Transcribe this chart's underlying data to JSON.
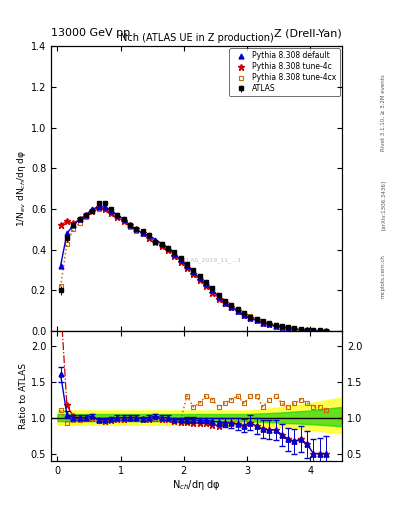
{
  "title_top_left": "13000 GeV pp",
  "title_top_right": "Z (Drell-Yan)",
  "plot_title": "Nch (ATLAS UE in Z production)",
  "xlabel": "N$_{ch}$/dη dφ",
  "ylabel_main": "1/N$_{ev}$ dN$_{ch}$/dη dφ",
  "ylabel_ratio": "Ratio to ATLAS",
  "rivet_text": "Rivet 3.1.10, ≥ 3.2M events",
  "arxiv_text": "[arXiv:1306.3436]",
  "mcplots_text": "mcplots.cern.ch",
  "xlim": [
    -0.1,
    4.5
  ],
  "ylim_main": [
    0,
    1.4
  ],
  "ylim_ratio": [
    0.4,
    2.2
  ],
  "atlas_x": [
    0.05,
    0.15,
    0.25,
    0.35,
    0.45,
    0.55,
    0.65,
    0.75,
    0.85,
    0.95,
    1.05,
    1.15,
    1.25,
    1.35,
    1.45,
    1.55,
    1.65,
    1.75,
    1.85,
    1.95,
    2.05,
    2.15,
    2.25,
    2.35,
    2.45,
    2.55,
    2.65,
    2.75,
    2.85,
    2.95,
    3.05,
    3.15,
    3.25,
    3.35,
    3.45,
    3.55,
    3.65,
    3.75,
    3.85,
    3.95,
    4.05,
    4.15,
    4.25
  ],
  "atlas_y": [
    0.2,
    0.46,
    0.52,
    0.55,
    0.57,
    0.59,
    0.63,
    0.63,
    0.6,
    0.57,
    0.55,
    0.52,
    0.5,
    0.49,
    0.47,
    0.44,
    0.43,
    0.41,
    0.39,
    0.36,
    0.33,
    0.3,
    0.27,
    0.24,
    0.21,
    0.18,
    0.15,
    0.13,
    0.11,
    0.09,
    0.07,
    0.06,
    0.05,
    0.04,
    0.03,
    0.025,
    0.02,
    0.015,
    0.01,
    0.008,
    0.006,
    0.004,
    0.002
  ],
  "atlas_yerr": [
    0.02,
    0.02,
    0.01,
    0.01,
    0.01,
    0.01,
    0.01,
    0.01,
    0.01,
    0.01,
    0.01,
    0.01,
    0.01,
    0.01,
    0.01,
    0.01,
    0.01,
    0.01,
    0.01,
    0.01,
    0.01,
    0.01,
    0.01,
    0.01,
    0.01,
    0.01,
    0.008,
    0.007,
    0.006,
    0.005,
    0.004,
    0.004,
    0.003,
    0.003,
    0.002,
    0.002,
    0.002,
    0.001,
    0.001,
    0.001,
    0.001,
    0.0005,
    0.0005
  ],
  "pythia_default_x": [
    0.05,
    0.15,
    0.25,
    0.35,
    0.45,
    0.55,
    0.65,
    0.75,
    0.85,
    0.95,
    1.05,
    1.15,
    1.25,
    1.35,
    1.45,
    1.55,
    1.65,
    1.75,
    1.85,
    1.95,
    2.05,
    2.15,
    2.25,
    2.35,
    2.45,
    2.55,
    2.65,
    2.75,
    2.85,
    2.95,
    3.05,
    3.15,
    3.25,
    3.35,
    3.45,
    3.55,
    3.65,
    3.75,
    3.85,
    3.95,
    4.05,
    4.15,
    4.25
  ],
  "pythia_default_y": [
    0.32,
    0.48,
    0.52,
    0.55,
    0.57,
    0.6,
    0.61,
    0.61,
    0.59,
    0.57,
    0.55,
    0.52,
    0.5,
    0.48,
    0.47,
    0.45,
    0.43,
    0.41,
    0.38,
    0.35,
    0.32,
    0.29,
    0.26,
    0.23,
    0.2,
    0.17,
    0.14,
    0.12,
    0.1,
    0.08,
    0.065,
    0.053,
    0.042,
    0.033,
    0.025,
    0.019,
    0.014,
    0.01,
    0.007,
    0.005,
    0.003,
    0.002,
    0.001
  ],
  "pythia_tune4c_x": [
    0.05,
    0.15,
    0.25,
    0.35,
    0.45,
    0.55,
    0.65,
    0.75,
    0.85,
    0.95,
    1.05,
    1.15,
    1.25,
    1.35,
    1.45,
    1.55,
    1.65,
    1.75,
    1.85,
    1.95,
    2.05,
    2.15,
    2.25,
    2.35,
    2.45,
    2.55,
    2.65,
    2.75,
    2.85,
    2.95,
    3.05,
    3.15,
    3.25,
    3.35,
    3.45,
    3.55,
    3.65,
    3.75,
    3.85,
    3.95,
    4.05,
    4.15,
    4.25
  ],
  "pythia_tune4c_y": [
    0.52,
    0.54,
    0.53,
    0.55,
    0.57,
    0.59,
    0.61,
    0.6,
    0.58,
    0.56,
    0.54,
    0.52,
    0.5,
    0.48,
    0.46,
    0.44,
    0.42,
    0.4,
    0.37,
    0.34,
    0.31,
    0.28,
    0.25,
    0.22,
    0.19,
    0.16,
    0.14,
    0.12,
    0.1,
    0.08,
    0.065,
    0.053,
    0.042,
    0.033,
    0.025,
    0.019,
    0.014,
    0.01,
    0.007,
    0.005,
    0.003,
    0.002,
    0.001
  ],
  "pythia_tune4cx_x": [
    0.05,
    0.15,
    0.25,
    0.35,
    0.45,
    0.55,
    0.65,
    0.75,
    0.85,
    0.95,
    1.05,
    1.15,
    1.25,
    1.35,
    1.45,
    1.55,
    1.65,
    1.75,
    1.85,
    1.95,
    2.05,
    2.15,
    2.25,
    2.35,
    2.45,
    2.55,
    2.65,
    2.75,
    2.85,
    2.95,
    3.05,
    3.15,
    3.25,
    3.35,
    3.45,
    3.55,
    3.65,
    3.75,
    3.85,
    3.95,
    4.05,
    4.15,
    4.25
  ],
  "pythia_tune4cx_y": [
    0.22,
    0.43,
    0.5,
    0.53,
    0.56,
    0.59,
    0.6,
    0.6,
    0.58,
    0.56,
    0.54,
    0.51,
    0.49,
    0.48,
    0.46,
    0.44,
    0.42,
    0.4,
    0.38,
    0.35,
    0.32,
    0.3,
    0.27,
    0.24,
    0.21,
    0.18,
    0.15,
    0.13,
    0.11,
    0.09,
    0.073,
    0.059,
    0.047,
    0.037,
    0.028,
    0.022,
    0.016,
    0.012,
    0.008,
    0.006,
    0.004,
    0.003,
    0.002
  ],
  "atlas_color": "#000000",
  "default_color": "#0000cc",
  "tune4c_color": "#cc0000",
  "tune4cx_color": "#cc6600",
  "ratio_default_x": [
    0.05,
    0.15,
    0.25,
    0.35,
    0.45,
    0.55,
    0.65,
    0.75,
    0.85,
    0.95,
    1.05,
    1.15,
    1.25,
    1.35,
    1.45,
    1.55,
    1.65,
    1.75,
    1.85,
    1.95,
    2.05,
    2.15,
    2.25,
    2.35,
    2.45,
    2.55,
    2.65,
    2.75,
    2.85,
    2.95,
    3.05,
    3.15,
    3.25,
    3.35,
    3.45,
    3.55,
    3.65,
    3.75,
    3.85,
    3.95,
    4.05,
    4.15,
    4.25
  ],
  "ratio_default_y": [
    1.6,
    1.04,
    1.0,
    1.0,
    1.0,
    1.02,
    0.97,
    0.97,
    0.98,
    1.0,
    1.0,
    1.0,
    1.0,
    0.98,
    1.0,
    1.02,
    1.0,
    1.0,
    0.97,
    0.97,
    0.97,
    0.97,
    0.96,
    0.96,
    0.95,
    0.94,
    0.93,
    0.92,
    0.91,
    0.89,
    0.93,
    0.88,
    0.84,
    0.83,
    0.83,
    0.76,
    0.7,
    0.67,
    0.7,
    0.63,
    0.5,
    0.5,
    0.5
  ],
  "ratio_default_err": [
    0.1,
    0.05,
    0.04,
    0.03,
    0.03,
    0.03,
    0.03,
    0.03,
    0.03,
    0.03,
    0.03,
    0.03,
    0.03,
    0.03,
    0.03,
    0.03,
    0.03,
    0.03,
    0.03,
    0.03,
    0.04,
    0.04,
    0.04,
    0.04,
    0.05,
    0.05,
    0.06,
    0.07,
    0.08,
    0.09,
    0.1,
    0.11,
    0.12,
    0.13,
    0.14,
    0.15,
    0.16,
    0.17,
    0.18,
    0.19,
    0.2,
    0.22,
    0.25
  ],
  "ratio_tune4c_x": [
    0.05,
    0.15,
    0.25,
    0.35,
    0.45,
    0.55,
    0.65,
    0.75,
    0.85,
    0.95,
    1.05,
    1.15,
    1.25,
    1.35,
    1.45,
    1.55,
    1.65,
    1.75,
    1.85,
    1.95,
    2.05,
    2.15,
    2.25,
    2.35,
    2.45,
    2.55,
    2.65,
    2.75,
    2.85,
    2.95,
    3.05,
    3.15,
    3.25,
    3.35,
    3.45,
    3.55,
    3.65,
    3.75,
    3.85,
    3.95,
    4.05,
    4.15,
    4.25
  ],
  "ratio_tune4c_y": [
    2.6,
    1.17,
    1.02,
    1.0,
    1.0,
    1.0,
    0.97,
    0.95,
    0.97,
    0.98,
    0.98,
    1.0,
    1.0,
    0.98,
    0.98,
    1.0,
    0.98,
    0.98,
    0.95,
    0.94,
    0.94,
    0.93,
    0.93,
    0.92,
    0.9,
    0.89,
    0.93,
    0.92,
    0.91,
    0.89,
    0.93,
    0.88,
    0.84,
    0.83,
    0.83,
    0.76,
    0.7,
    0.67,
    0.7,
    0.63,
    0.5,
    0.5,
    0.5
  ],
  "ratio_tune4cx_x": [
    0.05,
    0.15,
    0.25,
    0.35,
    0.45,
    0.55,
    0.65,
    0.75,
    0.85,
    0.95,
    1.05,
    1.15,
    1.25,
    1.35,
    1.45,
    1.55,
    1.65,
    1.75,
    1.85,
    1.95,
    2.05,
    2.15,
    2.25,
    2.35,
    2.45,
    2.55,
    2.65,
    2.75,
    2.85,
    2.95,
    3.05,
    3.15,
    3.25,
    3.35,
    3.45,
    3.55,
    3.65,
    3.75,
    3.85,
    3.95,
    4.05,
    4.15,
    4.25
  ],
  "ratio_tune4cx_y": [
    1.1,
    0.93,
    0.96,
    0.96,
    0.98,
    1.0,
    0.95,
    0.95,
    0.97,
    0.98,
    0.98,
    0.98,
    0.98,
    0.98,
    0.98,
    1.0,
    0.98,
    0.98,
    0.97,
    0.97,
    1.3,
    1.15,
    1.2,
    1.3,
    1.25,
    1.15,
    1.2,
    1.25,
    1.3,
    1.2,
    1.3,
    1.3,
    1.15,
    1.25,
    1.3,
    1.2,
    1.15,
    1.2,
    1.25,
    1.2,
    1.15,
    1.15,
    1.1
  ],
  "band_x": [
    0.0,
    0.5,
    1.0,
    1.5,
    2.0,
    2.5,
    3.0,
    3.5,
    4.0,
    4.5
  ],
  "band_green_lo": [
    0.95,
    0.95,
    0.95,
    0.95,
    0.95,
    0.95,
    0.95,
    0.93,
    0.91,
    0.88
  ],
  "band_green_hi": [
    1.05,
    1.05,
    1.05,
    1.05,
    1.05,
    1.05,
    1.05,
    1.07,
    1.1,
    1.15
  ],
  "band_yellow_lo": [
    0.9,
    0.9,
    0.9,
    0.9,
    0.9,
    0.9,
    0.9,
    0.87,
    0.83,
    0.78
  ],
  "band_yellow_hi": [
    1.1,
    1.1,
    1.1,
    1.1,
    1.1,
    1.1,
    1.1,
    1.14,
    1.2,
    1.28
  ]
}
